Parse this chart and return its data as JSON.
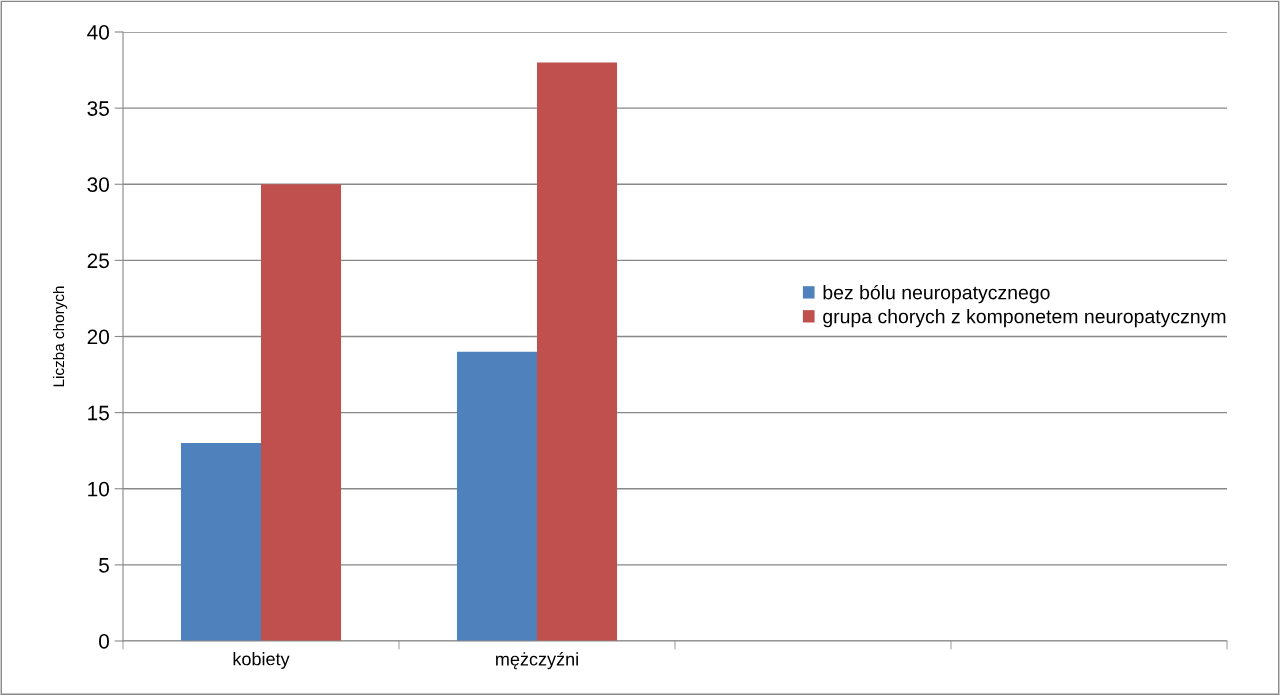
{
  "chart_data": {
    "type": "bar",
    "ylabel": "Liczba chorych",
    "categories": [
      "kobiety",
      "mężczyźni",
      null,
      null
    ],
    "series": [
      {
        "name": "bez bólu neuropatycznego",
        "color": "#4f81bd",
        "values": [
          13,
          19,
          null,
          null
        ]
      },
      {
        "name": "grupa chorych z komponetem neuropatycznym",
        "color": "#c0504d",
        "values": [
          30,
          38,
          null,
          null
        ]
      }
    ],
    "ylim": [
      0,
      40
    ],
    "yticks": [
      0,
      5,
      10,
      15,
      20,
      25,
      30,
      35,
      40
    ],
    "grid": "y",
    "legend": "right"
  }
}
